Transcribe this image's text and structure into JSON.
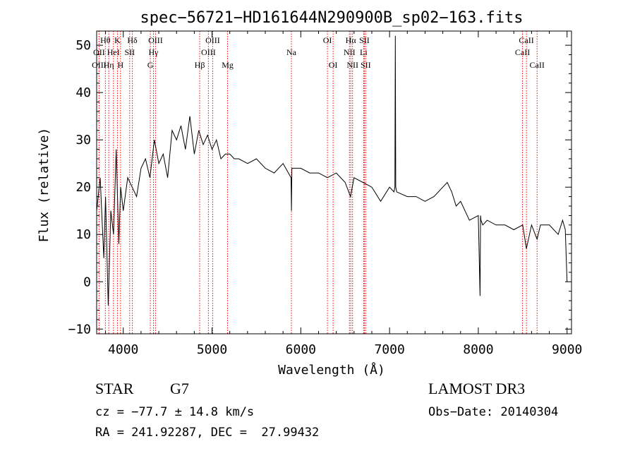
{
  "chart_data": {
    "type": "line",
    "title": "spec−56721−HD161644N290900B_sp02−163.fits",
    "xlabel": "Wavelength (Å)",
    "ylabel": "Flux (relative)",
    "xlim": [
      3700,
      9050
    ],
    "ylim": [
      -11,
      53
    ],
    "xticks": [
      4000,
      5000,
      6000,
      7000,
      8000,
      9000
    ],
    "yticks": [
      -10,
      0,
      10,
      20,
      30,
      40,
      50
    ],
    "ytick_labels": [
      "−10",
      "0",
      "10",
      "20",
      "30",
      "40",
      "50"
    ],
    "grid": false,
    "line_color": "#000000",
    "marker_color": "#ff0000",
    "series": [
      {
        "name": "flux",
        "x": [
          3700,
          3740,
          3780,
          3800,
          3830,
          3860,
          3890,
          3920,
          3950,
          3970,
          4000,
          4050,
          4100,
          4150,
          4200,
          4250,
          4300,
          4350,
          4400,
          4450,
          4500,
          4550,
          4600,
          4650,
          4700,
          4750,
          4800,
          4850,
          4900,
          4950,
          5000,
          5050,
          5100,
          5150,
          5200,
          5250,
          5300,
          5400,
          5500,
          5600,
          5700,
          5800,
          5890,
          5895,
          5900,
          6000,
          6100,
          6200,
          6300,
          6400,
          6500,
          6560,
          6600,
          6700,
          6800,
          6900,
          7000,
          7050,
          7060,
          7065,
          7070,
          7080,
          7200,
          7300,
          7400,
          7500,
          7600,
          7650,
          7700,
          7750,
          7800,
          7900,
          8000,
          8020,
          8025,
          8030,
          8050,
          8100,
          8200,
          8300,
          8400,
          8500,
          8542,
          8600,
          8662,
          8700,
          8800,
          8900,
          8950,
          8980,
          9000
        ],
        "y": [
          15,
          22,
          5,
          18,
          -5,
          15,
          10,
          28,
          8,
          20,
          15,
          22,
          20,
          18,
          24,
          26,
          22,
          30,
          25,
          27,
          22,
          32,
          30,
          33,
          28,
          35,
          27,
          32,
          29,
          31,
          28,
          30,
          26,
          27,
          27,
          26,
          26,
          25,
          26,
          24,
          23,
          25,
          22,
          15,
          24,
          24,
          23,
          23,
          22,
          23,
          21,
          18,
          22,
          21,
          20,
          17,
          20,
          19,
          20,
          52,
          20,
          19,
          18,
          18,
          17,
          18,
          20,
          21,
          19,
          16,
          17,
          13,
          14,
          -3,
          14,
          13,
          12,
          13,
          12,
          12,
          11,
          12,
          7,
          12,
          9,
          12,
          12,
          10,
          13,
          11,
          0
        ]
      }
    ],
    "annotations": [
      {
        "label": "Hθ",
        "x": 3798,
        "row": 1
      },
      {
        "label": "OII",
        "x": 3727,
        "row": 2
      },
      {
        "label": "OIII",
        "x": 3727,
        "row": 3
      },
      {
        "label": "K",
        "x": 3934,
        "row": 1
      },
      {
        "label": "HeI",
        "x": 3889,
        "row": 2
      },
      {
        "label": "Hη",
        "x": 3836,
        "row": 3
      },
      {
        "label": "SII",
        "x": 4072,
        "row": 2
      },
      {
        "label": "H",
        "x": 3969,
        "row": 3
      },
      {
        "label": "Hδ",
        "x": 4102,
        "row": 1
      },
      {
        "label": "OIII",
        "x": 4363,
        "row": 1
      },
      {
        "label": "Hγ",
        "x": 4340,
        "row": 2
      },
      {
        "label": "G",
        "x": 4305,
        "row": 3
      },
      {
        "label": "OIII",
        "x": 5007,
        "row": 1
      },
      {
        "label": "OIII",
        "x": 4959,
        "row": 2
      },
      {
        "label": "Hβ",
        "x": 4861,
        "row": 3
      },
      {
        "label": "Mg",
        "x": 5175,
        "row": 3
      },
      {
        "label": "Na",
        "x": 5894,
        "row": 2
      },
      {
        "label": "OI",
        "x": 6300,
        "row": 1
      },
      {
        "label": "OI",
        "x": 6364,
        "row": 3
      },
      {
        "label": "Hα",
        "x": 6563,
        "row": 1
      },
      {
        "label": "SII",
        "x": 6716,
        "row": 1
      },
      {
        "label": "NII",
        "x": 6548,
        "row": 2
      },
      {
        "label": "Li",
        "x": 6708,
        "row": 2
      },
      {
        "label": "NII",
        "x": 6583,
        "row": 3
      },
      {
        "label": "SII",
        "x": 6731,
        "row": 3
      },
      {
        "label": "CaII",
        "x": 8542,
        "row": 1
      },
      {
        "label": "CaII",
        "x": 8498,
        "row": 2
      },
      {
        "label": "CaII",
        "x": 8662,
        "row": 3
      }
    ]
  },
  "info": {
    "object_class": "STAR",
    "subclass": "G7",
    "survey": "LAMOST DR3",
    "redshift": "cz = −77.7 ± 14.8 km/s",
    "obs_date": "Obs−Date: 20140304",
    "coords": "RA = 241.92287, DEC =  27.99432"
  }
}
